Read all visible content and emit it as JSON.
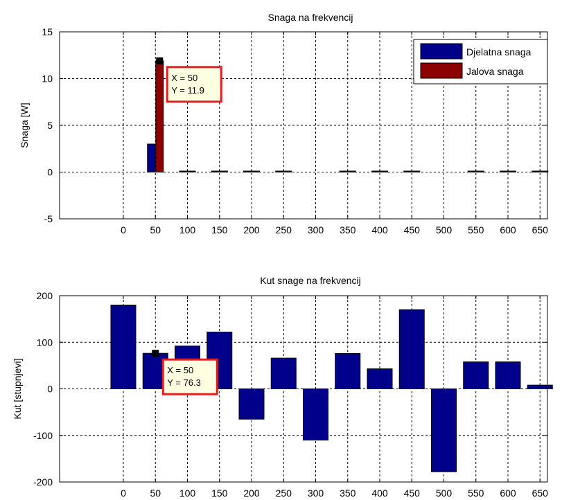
{
  "chart_data": [
    {
      "type": "bar",
      "title": "Snaga na frekvencij",
      "xlabel": "",
      "ylabel": "Snaga [W]",
      "ylim": [
        -5,
        15
      ],
      "yticks": [
        -5,
        0,
        5,
        10,
        15
      ],
      "x": [
        0,
        50,
        100,
        150,
        200,
        250,
        300,
        350,
        400,
        450,
        500,
        550,
        600,
        650
      ],
      "grid": true,
      "legend_position": "top-right",
      "series": [
        {
          "name": "Djelatna snaga",
          "color": "#00008B",
          "values": [
            0,
            3.0,
            0.05,
            0.05,
            0.05,
            0.05,
            0,
            0.05,
            0.05,
            0.05,
            0,
            0.05,
            0.05,
            0.05
          ]
        },
        {
          "name": "Jalova snaga",
          "color": "#8B0000",
          "values": [
            0,
            11.9,
            0.02,
            0.02,
            0.02,
            0.02,
            0,
            0.02,
            0.02,
            0.02,
            0,
            0.02,
            0.02,
            0.02
          ]
        }
      ],
      "datatip": {
        "x_text": "X = 50",
        "y_text": "Y = 11.9",
        "x": 50,
        "y": 11.9,
        "series": 1
      }
    },
    {
      "type": "bar",
      "title": "Kut snage na frekvencij",
      "xlabel": "",
      "ylabel": "Kut [stupnjevi]",
      "ylim": [
        -200,
        200
      ],
      "yticks": [
        -200,
        -100,
        0,
        100,
        200
      ],
      "x": [
        0,
        50,
        100,
        150,
        200,
        250,
        300,
        350,
        400,
        450,
        500,
        550,
        600,
        650
      ],
      "grid": true,
      "series": [
        {
          "color": "#00008B",
          "values": [
            180,
            76.3,
            92,
            122,
            -65,
            66,
            -110,
            76,
            43,
            170,
            -178,
            58,
            58,
            8
          ]
        }
      ],
      "datatip": {
        "x_text": "X = 50",
        "y_text": "Y = 76.3",
        "x": 50,
        "y": 76.3,
        "series": 0
      }
    }
  ]
}
